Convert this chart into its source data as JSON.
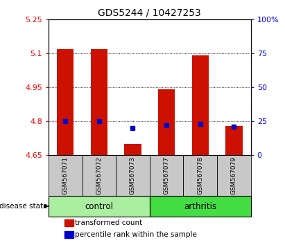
{
  "title": "GDS5244 / 10427253",
  "samples": [
    "GSM567071",
    "GSM567072",
    "GSM567073",
    "GSM567077",
    "GSM567078",
    "GSM567079"
  ],
  "groups": [
    "control",
    "control",
    "control",
    "arthritis",
    "arthritis",
    "arthritis"
  ],
  "transformed_counts": [
    5.12,
    5.12,
    4.7,
    4.94,
    5.09,
    4.78
  ],
  "percentile_ranks": [
    25,
    25,
    20,
    22,
    23,
    21
  ],
  "ylim_left": [
    4.65,
    5.25
  ],
  "ylim_right": [
    0,
    100
  ],
  "yticks_left": [
    4.65,
    4.8,
    4.95,
    5.1,
    5.25
  ],
  "ytick_labels_left": [
    "4.65",
    "4.8",
    "4.95",
    "5.1",
    "5.25"
  ],
  "yticks_right": [
    0,
    25,
    50,
    75,
    100
  ],
  "ytick_labels_right": [
    "0",
    "25",
    "50",
    "75",
    "100%"
  ],
  "bar_color": "#CC1100",
  "dot_color": "#0000CC",
  "bar_bottom": 4.65,
  "bar_width": 0.5,
  "legend_tc": "transformed count",
  "legend_pr": "percentile rank within the sample",
  "control_color": "#AAEEA0",
  "arthritis_color": "#44DD44",
  "sample_box_color": "#C8C8C8",
  "control_border_color": "#006600",
  "arthritis_border_color": "#006600"
}
